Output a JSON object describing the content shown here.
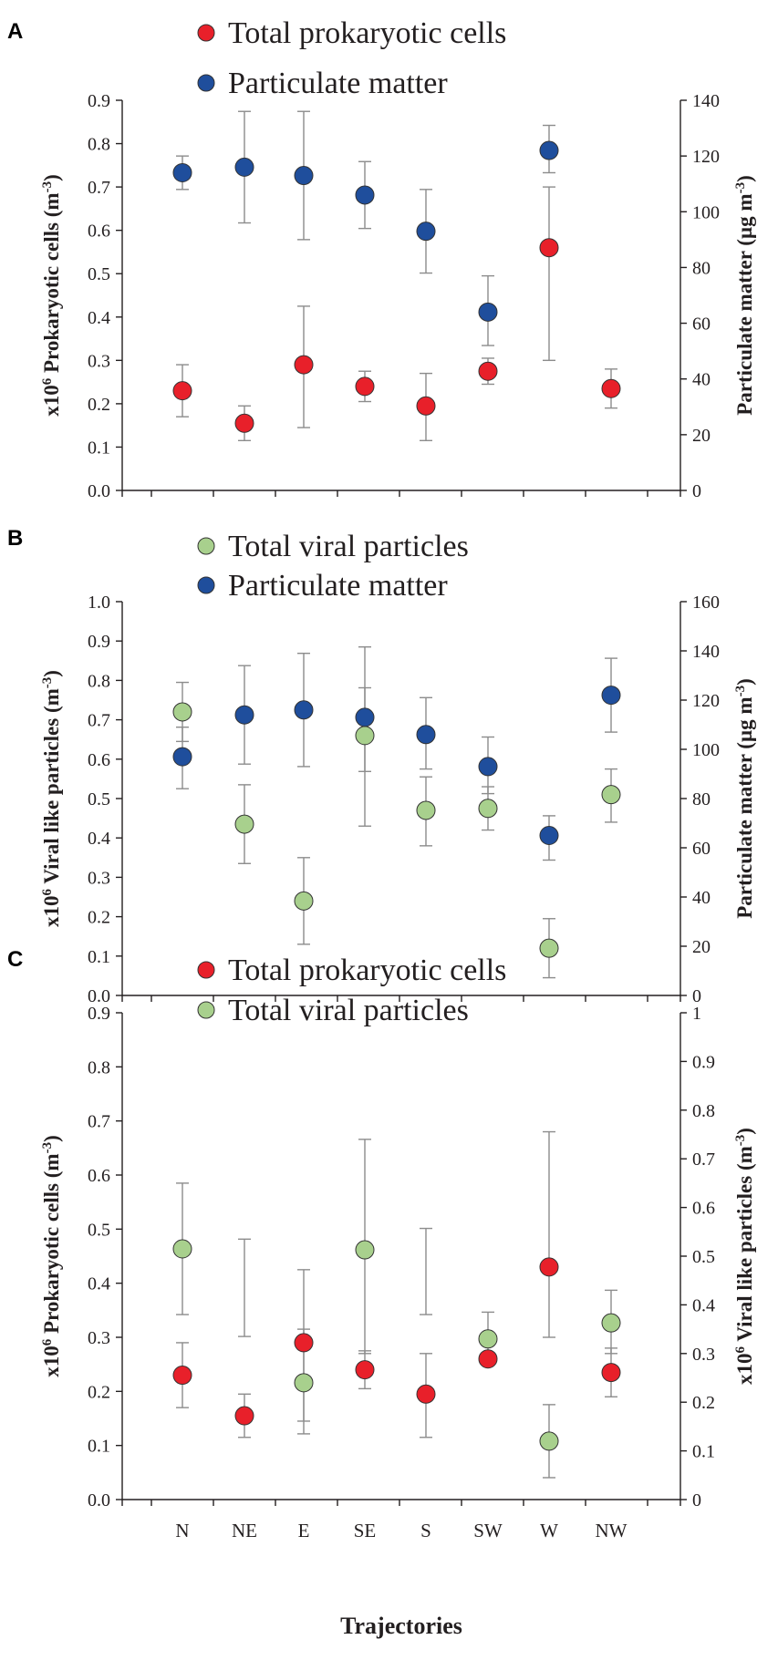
{
  "figure": {
    "x_title": "Trajectories"
  },
  "colors": {
    "prokaryotic": "#e8202a",
    "particulate": "#1f4e9c",
    "viral": "#a8d08d",
    "error_bar": "#8c8c8c"
  },
  "chart_data": [
    {
      "panel": "A",
      "type": "scatter",
      "categories": [
        "N",
        "NE",
        "E",
        "SE",
        "S",
        "SW",
        "W",
        "NW"
      ],
      "show_category_labels": false,
      "y_left": {
        "label_main": "x10",
        "label_sup": "6",
        "label_rest": " Prokaryotic cells (m",
        "label_sup2": "-3",
        "label_end": ")",
        "lim": [
          0,
          0.9
        ],
        "ticks": [
          "0.0",
          "0.1",
          "0.2",
          "0.3",
          "0.4",
          "0.5",
          "0.6",
          "0.7",
          "0.8",
          "0.9"
        ]
      },
      "y_right": {
        "label_main": "Particulate matter  (µg m",
        "label_sup": "-3",
        "label_end": ")",
        "lim": [
          0,
          140
        ],
        "ticks": [
          "0",
          "20",
          "40",
          "60",
          "80",
          "100",
          "120",
          "140"
        ]
      },
      "legend": [
        "Total prokaryotic cells",
        "Particulate matter"
      ],
      "series": [
        {
          "name": "Total prokaryotic cells",
          "axis": "left",
          "color_key": "prokaryotic",
          "values": [
            0.23,
            0.155,
            0.29,
            0.24,
            0.195,
            0.275,
            0.56,
            0.235
          ],
          "err_low": [
            0.17,
            0.115,
            0.145,
            0.205,
            0.115,
            0.245,
            0.3,
            0.19
          ],
          "err_high": [
            0.29,
            0.195,
            0.425,
            0.275,
            0.27,
            0.305,
            0.7,
            0.28
          ]
        },
        {
          "name": "Particulate matter",
          "axis": "right",
          "color_key": "particulate",
          "values": [
            114,
            116,
            113,
            106,
            93,
            64,
            122,
            null
          ],
          "err_low": [
            108,
            96,
            90,
            94,
            78,
            52,
            114,
            null
          ],
          "err_high": [
            120,
            136,
            136,
            118,
            108,
            77,
            131,
            null
          ]
        }
      ]
    },
    {
      "panel": "B",
      "type": "scatter",
      "categories": [
        "N",
        "NE",
        "E",
        "SE",
        "S",
        "SW",
        "W",
        "NW"
      ],
      "show_category_labels": false,
      "y_left": {
        "label_main": "x10",
        "label_sup": "6",
        "label_rest": " Viral like particles (m",
        "label_sup2": "-3",
        "label_end": ")",
        "lim": [
          0,
          1.0
        ],
        "ticks": [
          "0.0",
          "0.1",
          "0.2",
          "0.3",
          "0.4",
          "0.5",
          "0.6",
          "0.7",
          "0.8",
          "0.9",
          "1.0"
        ]
      },
      "y_right": {
        "label_main": "Particulate matter  (µg m",
        "label_sup": "-3",
        "label_end": ")",
        "lim": [
          0,
          160
        ],
        "ticks": [
          "0",
          "20",
          "40",
          "60",
          "80",
          "100",
          "120",
          "140",
          "160"
        ]
      },
      "legend": [
        "Total viral particles",
        "Particulate matter"
      ],
      "series": [
        {
          "name": "Total viral particles",
          "axis": "left",
          "color_key": "viral",
          "values": [
            0.72,
            0.435,
            0.24,
            0.66,
            0.47,
            0.475,
            0.12,
            0.51
          ],
          "err_low": [
            0.645,
            0.335,
            0.13,
            0.43,
            0.38,
            0.42,
            0.045,
            0.44
          ],
          "err_high": [
            0.795,
            0.535,
            0.35,
            0.885,
            0.555,
            0.53,
            0.195,
            0.575
          ]
        },
        {
          "name": "Particulate matter",
          "axis": "right",
          "color_key": "particulate",
          "values": [
            97,
            114,
            116,
            113,
            106,
            93,
            65,
            122
          ],
          "err_low": [
            84,
            94,
            93,
            91,
            92,
            82,
            55,
            107
          ],
          "err_high": [
            109,
            134,
            139,
            125,
            121,
            105,
            73,
            137
          ]
        }
      ]
    },
    {
      "panel": "C",
      "type": "scatter",
      "categories": [
        "N",
        "NE",
        "E",
        "SE",
        "S",
        "SW",
        "W",
        "NW"
      ],
      "show_category_labels": true,
      "y_left": {
        "label_main": "x10",
        "label_sup": "6",
        "label_rest": " Prokaryotic cells (m",
        "label_sup2": "-3",
        "label_end": ")",
        "lim": [
          0,
          0.9
        ],
        "ticks": [
          "0.0",
          "0.1",
          "0.2",
          "0.3",
          "0.4",
          "0.5",
          "0.6",
          "0.7",
          "0.8",
          "0.9"
        ]
      },
      "y_right": {
        "label_main": "x10",
        "label_sup": "6",
        "label_rest": " Viral like particles (m",
        "label_sup2": "-3",
        "label_end": ")",
        "lim": [
          0,
          1.0
        ],
        "ticks": [
          "0",
          "0.1",
          "0.2",
          "0.3",
          "0.4",
          "0.5",
          "0.6",
          "0.7",
          "0.8",
          "0.9",
          "1"
        ]
      },
      "legend": [
        "Total prokaryotic cells",
        "Total viral particles"
      ],
      "series": [
        {
          "name": "Total prokaryotic cells",
          "axis": "left",
          "color_key": "prokaryotic",
          "values": [
            0.23,
            0.155,
            0.29,
            0.24,
            0.195,
            0.26,
            0.43,
            0.235
          ],
          "err_low": [
            0.17,
            0.115,
            0.145,
            0.205,
            0.115,
            null,
            0.3,
            0.19
          ],
          "err_high": [
            0.29,
            0.195,
            0.425,
            0.275,
            0.27,
            null,
            0.68,
            0.28
          ]
        },
        {
          "name": "Total viral particles",
          "axis": "right",
          "color_key": "viral",
          "values": [
            0.515,
            null,
            0.24,
            0.513,
            null,
            0.33,
            0.12,
            0.363
          ],
          "err_low": [
            0.38,
            0.335,
            0.135,
            0.3,
            0.38,
            0.3,
            0.045,
            0.3
          ],
          "err_high": [
            0.65,
            0.535,
            0.35,
            0.74,
            0.557,
            0.385,
            0.195,
            0.43
          ]
        }
      ]
    }
  ]
}
